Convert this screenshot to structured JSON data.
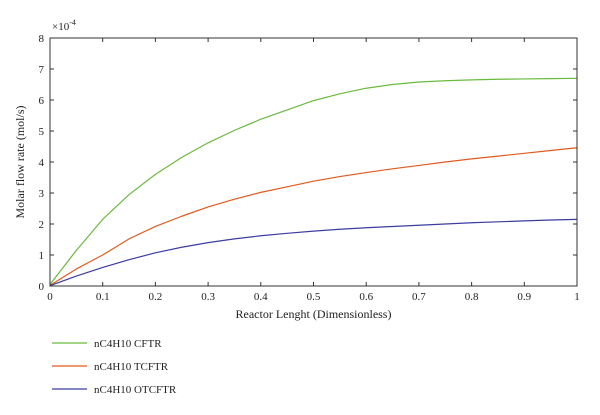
{
  "chart_data": {
    "type": "line",
    "xlabel": "Reactor Lenght (Dimensionless)",
    "ylabel": "Molar flow rate (mol/s)",
    "y_multiplier_label": "×10",
    "y_multiplier_exponent": "-4",
    "xlim": [
      0,
      1
    ],
    "ylim": [
      0,
      8
    ],
    "xticks": [
      0,
      0.1,
      0.2,
      0.3,
      0.4,
      0.5,
      0.6,
      0.7,
      0.8,
      0.9,
      1
    ],
    "xtick_labels": [
      "0",
      "0.1",
      "0.2",
      "0.3",
      "0.4",
      "0.5",
      "0.6",
      "0.7",
      "0.8",
      "0.9",
      "1"
    ],
    "yticks": [
      0,
      1,
      2,
      3,
      4,
      5,
      6,
      7,
      8
    ],
    "ytick_labels": [
      "0",
      "1",
      "2",
      "3",
      "4",
      "5",
      "6",
      "7",
      "8"
    ],
    "grid": false,
    "legend_placement": "below",
    "x": [
      0,
      0.05,
      0.1,
      0.15,
      0.2,
      0.25,
      0.3,
      0.35,
      0.4,
      0.45,
      0.5,
      0.55,
      0.6,
      0.65,
      0.7,
      0.75,
      0.8,
      0.85,
      0.9,
      0.95,
      1.0
    ],
    "series": [
      {
        "name": "nC4H10 CFTR",
        "color": "#6aba3e",
        "values": [
          0.05,
          1.15,
          2.15,
          2.95,
          3.6,
          4.15,
          4.62,
          5.02,
          5.38,
          5.68,
          5.98,
          6.2,
          6.38,
          6.5,
          6.58,
          6.62,
          6.65,
          6.67,
          6.68,
          6.69,
          6.7
        ]
      },
      {
        "name": "nC4H10 TCFTR",
        "color": "#e05a1e",
        "values": [
          0.02,
          0.55,
          1.0,
          1.52,
          1.92,
          2.25,
          2.55,
          2.8,
          3.02,
          3.2,
          3.38,
          3.53,
          3.66,
          3.78,
          3.89,
          4.0,
          4.1,
          4.19,
          4.28,
          4.37,
          4.46
        ]
      },
      {
        "name": "nC4H10 OTCFTR",
        "color": "#3b3da0",
        "values": [
          0.01,
          0.32,
          0.6,
          0.85,
          1.07,
          1.25,
          1.4,
          1.52,
          1.62,
          1.7,
          1.77,
          1.83,
          1.88,
          1.92,
          1.96,
          2.0,
          2.04,
          2.07,
          2.1,
          2.13,
          2.15
        ]
      }
    ]
  }
}
